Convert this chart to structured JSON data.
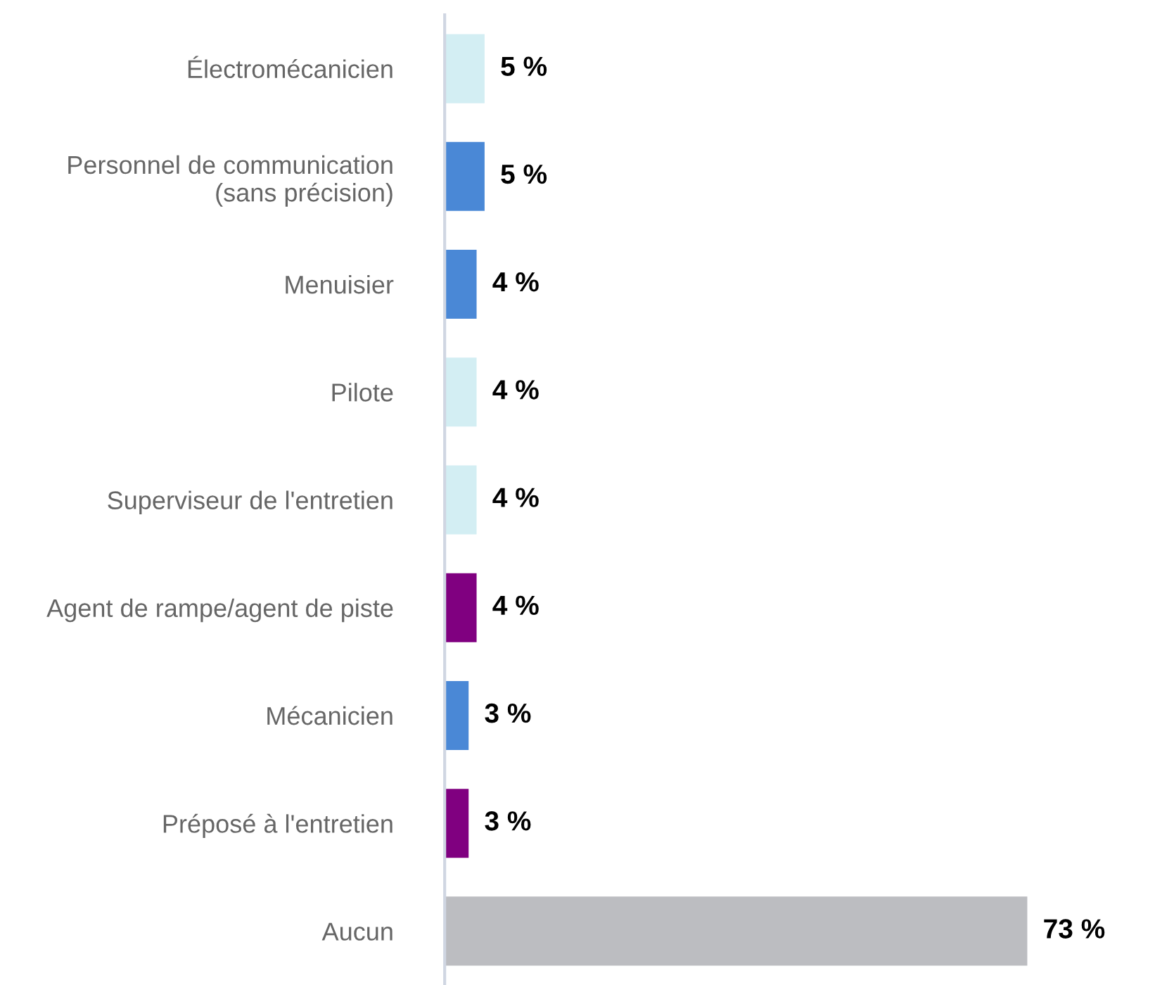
{
  "chart_data": {
    "type": "bar",
    "orientation": "horizontal",
    "data_labels": true,
    "grid": false,
    "legend": false,
    "categories": [
      "Électromécanicien",
      "Personnel de communication\n(sans précision)",
      "Menuisier",
      "Pilote",
      "Superviseur de l'entretien",
      "Agent de rampe/agent de piste",
      "Mécanicien",
      "Préposé à l'entretien",
      "Aucun"
    ],
    "values": [
      5,
      5,
      4,
      4,
      4,
      4,
      3,
      3,
      73
    ],
    "value_labels": [
      "5 %",
      "5 %",
      "4 %",
      "4 %",
      "4 %",
      "4 %",
      "3 %",
      "3 %",
      "73 %"
    ],
    "colors": [
      "#d3eef3",
      "#4a88d6",
      "#4a88d6",
      "#d3eef3",
      "#d3eef3",
      "#800080",
      "#4a88d6",
      "#800080",
      "#bcbdc1"
    ]
  }
}
